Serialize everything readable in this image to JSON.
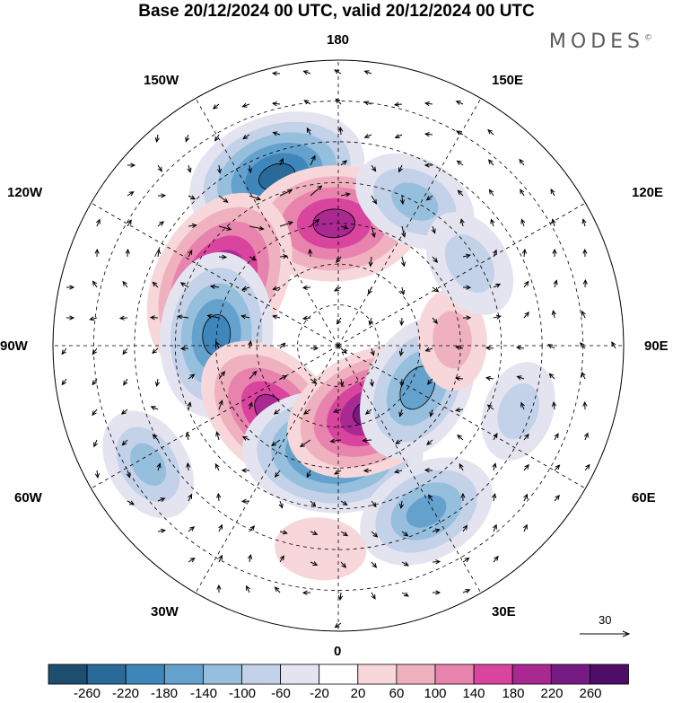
{
  "title": "Base 20/12/2024 00 UTC, valid 20/12/2024 00 UTC",
  "logo": "MODES",
  "longitude_labels": {
    "n180": "180",
    "w150": "150W",
    "e150": "150E",
    "w120": "120W",
    "e120": "120E",
    "w90": "90W",
    "e90": "90E",
    "w60": "60W",
    "e60": "60E",
    "w30": "30W",
    "e30": "30E",
    "s0": "0"
  },
  "colorbar": {
    "labels": [
      "-260",
      "-220",
      "-180",
      "-140",
      "-100",
      "-60",
      "-20",
      "20",
      "60",
      "100",
      "140",
      "180",
      "220",
      "260"
    ],
    "colors": [
      "#1e4e6e",
      "#2a6a98",
      "#3f86bb",
      "#64a2cd",
      "#96bedd",
      "#c3d2e8",
      "#e4e4f0",
      "#ffffff",
      "#f7d7da",
      "#f0b1bf",
      "#e883ae",
      "#d8449e",
      "#aa2891",
      "#761b83",
      "#4e0e68"
    ]
  },
  "vector_reference": "30",
  "anomalies": [
    {
      "name": "neg",
      "lon": -160,
      "colat": 44,
      "value": -230
    },
    {
      "name": "pos",
      "lon": -178,
      "colat": 30,
      "value": 210
    },
    {
      "name": "neg",
      "lon": 152,
      "colat": 40,
      "value": -120
    },
    {
      "name": "pos",
      "lon": -118,
      "colat": 33,
      "value": 250
    },
    {
      "name": "neg",
      "lon": -95,
      "colat": 30,
      "value": -200
    },
    {
      "name": "pos",
      "lon": -45,
      "colat": 23,
      "value": 200
    },
    {
      "name": "neg",
      "lon": -3,
      "colat": 26,
      "value": -230
    },
    {
      "name": "pos",
      "lon": 26,
      "colat": 18,
      "value": 220
    },
    {
      "name": "neg",
      "lon": 62,
      "colat": 22,
      "value": -170
    },
    {
      "name": "pos",
      "lon": 93,
      "colat": 28,
      "value": 70
    },
    {
      "name": "neg",
      "lon": 28,
      "colat": 46,
      "value": -150
    },
    {
      "name": "neg",
      "lon": -58,
      "colat": 55,
      "value": -100
    },
    {
      "name": "pos",
      "lon": -5,
      "colat": 50,
      "value": 50
    },
    {
      "name": "neg",
      "lon": 122,
      "colat": 38,
      "value": -90
    },
    {
      "name": "neg",
      "lon": 70,
      "colat": 47,
      "value": -70
    }
  ]
}
